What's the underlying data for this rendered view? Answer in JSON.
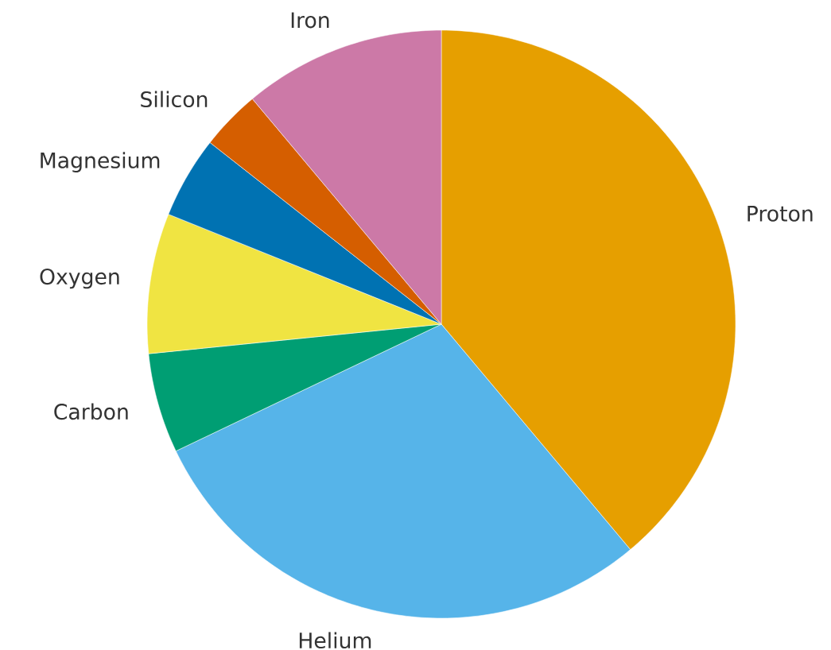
{
  "chart_data": {
    "type": "pie",
    "categories": [
      "Proton",
      "Helium",
      "Carbon",
      "Oxygen",
      "Magnesium",
      "Silicon",
      "Iron"
    ],
    "values": [
      38.9,
      29.0,
      5.5,
      7.7,
      4.5,
      3.3,
      11.1
    ],
    "colors": [
      "#e69f00",
      "#56b4e9",
      "#009e73",
      "#f0e442",
      "#0072b2",
      "#d55e00",
      "#cc79a7"
    ]
  }
}
